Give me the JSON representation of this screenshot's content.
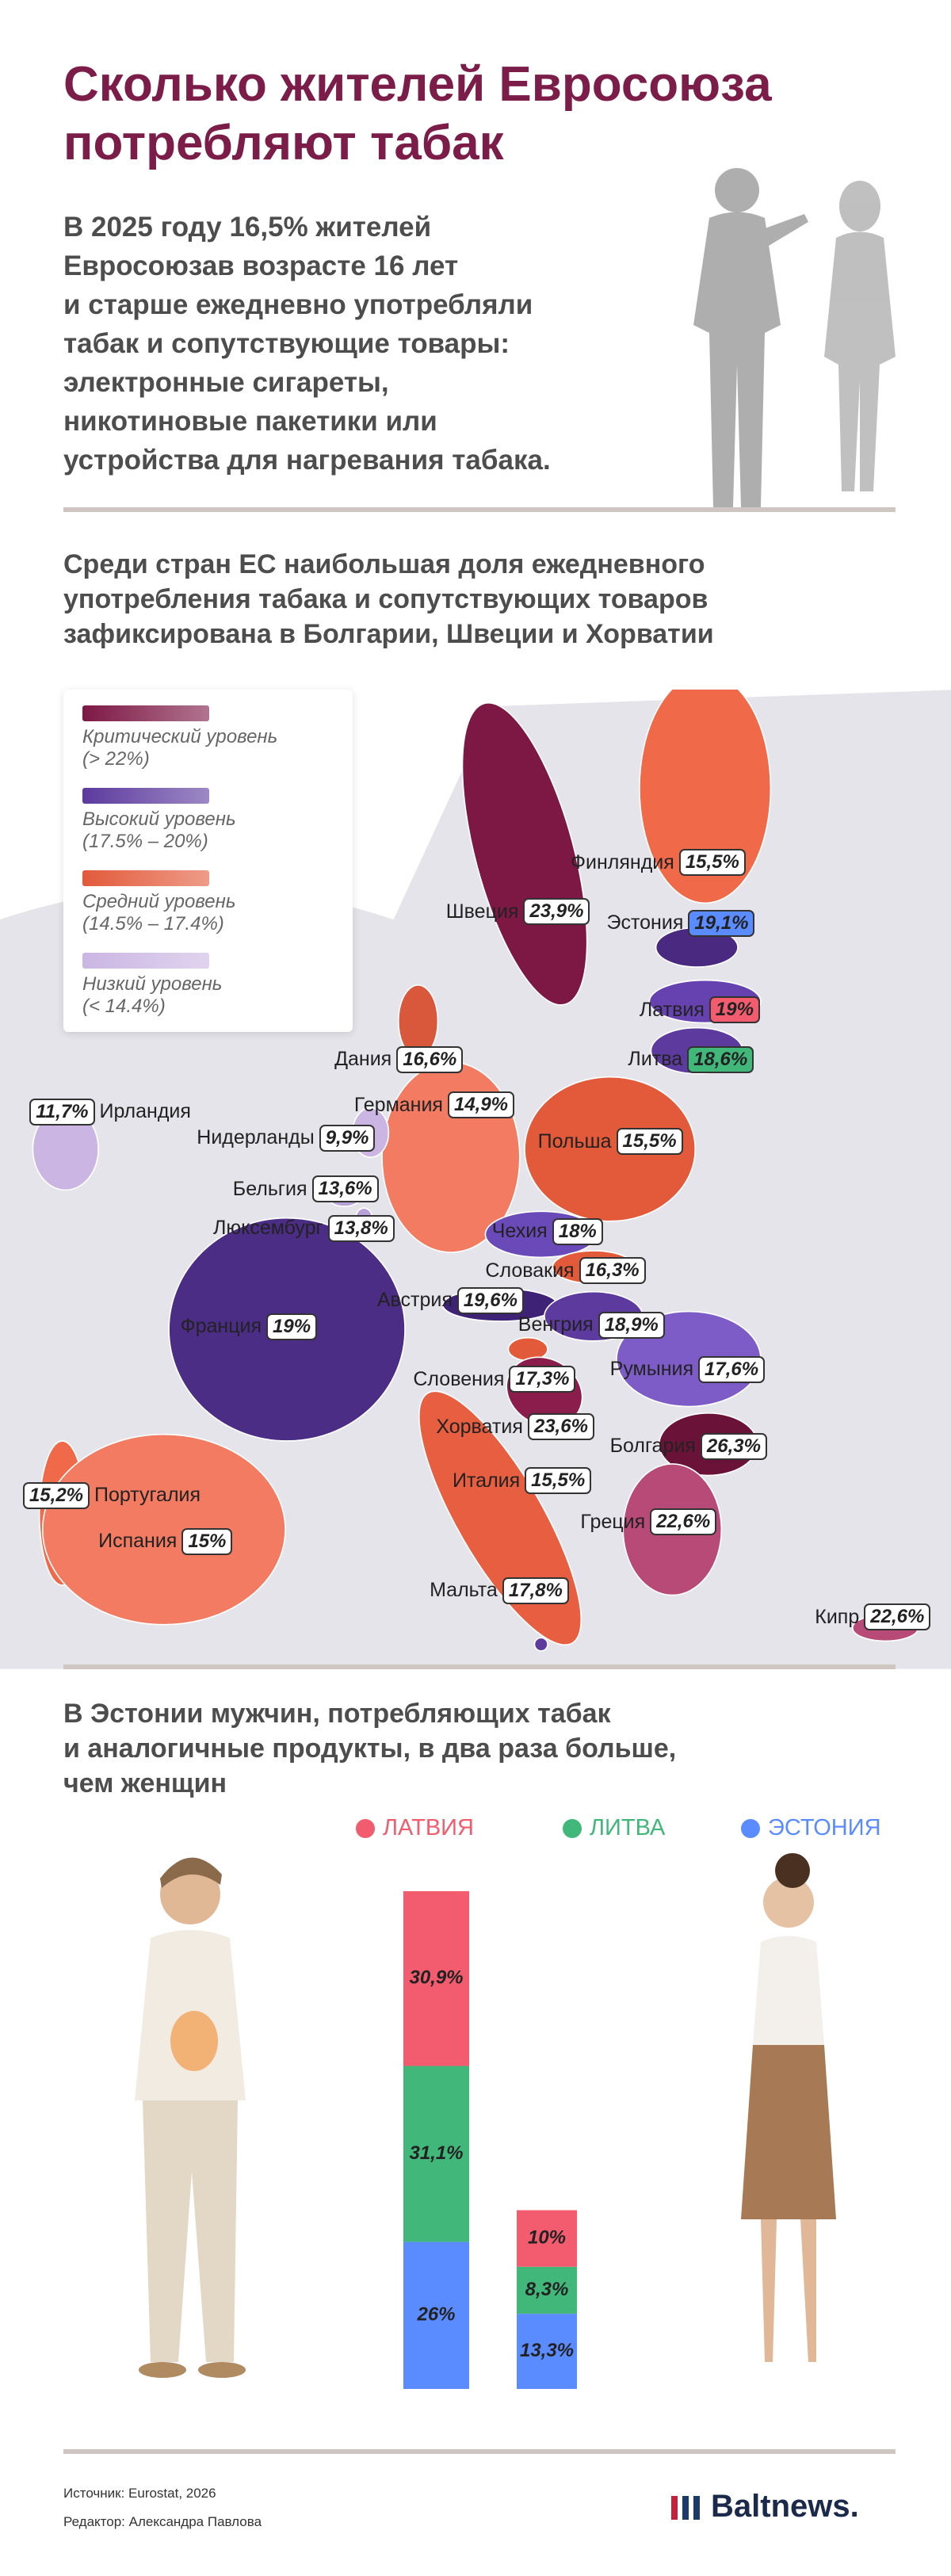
{
  "header": {
    "title": [
      "Сколько жителей Евросоюза",
      "потребляют табак"
    ],
    "intro": [
      "В 2025 году 16,5% жителей",
      "Евросоюзав возрасте 16 лет",
      "и старше ежедневно употребляли",
      "табак и сопутствующие товары:",
      "электронные сигареты,",
      "никотиновые пакетики или",
      "устройства для нагревания табака."
    ]
  },
  "map": {
    "heading": [
      "Среди стран ЕС наибольшая доля ежедневного",
      "употребления табака и сопутствующих товаров",
      "зафиксирована в Болгарии, Швеции и Хорватии"
    ],
    "legend": [
      {
        "name": "Критический уровень",
        "range": "(> 22%)",
        "color": "#7d1845"
      },
      {
        "name": "Высокий уровень",
        "range": "(17.5% – 20%)",
        "color": "#5c3a9e"
      },
      {
        "name": "Средний уровень",
        "range": "(14.5% – 17.4%)",
        "color": "#e25a3a"
      },
      {
        "name": "Низкий уровень",
        "range": "(< 14.4%)",
        "color": "#cbb6e3"
      }
    ],
    "countries": [
      {
        "name": "Финляндия",
        "value": 15.5,
        "value_label": "15,5%",
        "color": "#f06a4a"
      },
      {
        "name": "Швеция",
        "value": 23.9,
        "value_label": "23,9%",
        "color": "#7d1845"
      },
      {
        "name": "Эстония",
        "value": 19.1,
        "value_label": "19,1%",
        "color": "#4a2a80",
        "label_color": "#5b8cff"
      },
      {
        "name": "Латвия",
        "value": 19,
        "value_label": "19%",
        "color": "#6642b0",
        "label_color": "#f25c6e"
      },
      {
        "name": "Литва",
        "value": 18.6,
        "value_label": "18,6%",
        "color": "#5c3a9e",
        "label_color": "#41b87a"
      },
      {
        "name": "Дания",
        "value": 16.6,
        "value_label": "16,6%",
        "color": "#d9583c"
      },
      {
        "name": "Германия",
        "value": 14.9,
        "value_label": "14,9%",
        "color": "#f27b62"
      },
      {
        "name": "Ирландия",
        "value": 11.7,
        "value_label": "11,7%",
        "color": "#cbb6e3"
      },
      {
        "name": "Нидерланды",
        "value": 9.9,
        "value_label": "9,9%",
        "color": "#cbb6e3"
      },
      {
        "name": "Польша",
        "value": 15.5,
        "value_label": "15,5%",
        "color": "#e25a3a"
      },
      {
        "name": "Бельгия",
        "value": 13.6,
        "value_label": "13,6%",
        "color": "#b9a2d8"
      },
      {
        "name": "Люксембург",
        "value": 13.8,
        "value_label": "13,8%",
        "color": "#b9a2d8"
      },
      {
        "name": "Чехия",
        "value": 18,
        "value_label": "18%",
        "color": "#6a4ab8"
      },
      {
        "name": "Словакия",
        "value": 16.3,
        "value_label": "16,3%",
        "color": "#e25a3a"
      },
      {
        "name": "Франция",
        "value": 19,
        "value_label": "19%",
        "color": "#4b2d85"
      },
      {
        "name": "Австрия",
        "value": 19.6,
        "value_label": "19,6%",
        "color": "#3e2275"
      },
      {
        "name": "Венгрия",
        "value": 18.9,
        "value_label": "18,9%",
        "color": "#5c3a9e"
      },
      {
        "name": "Румыния",
        "value": 17.6,
        "value_label": "17,6%",
        "color": "#7d5cc8"
      },
      {
        "name": "Словения",
        "value": 17.3,
        "value_label": "17,3%",
        "color": "#e25a3a"
      },
      {
        "name": "Хорватия",
        "value": 23.6,
        "value_label": "23,6%",
        "color": "#8a1d4c"
      },
      {
        "name": "Болгария",
        "value": 26.3,
        "value_label": "26,3%",
        "color": "#6a1238"
      },
      {
        "name": "Италия",
        "value": 15.5,
        "value_label": "15,5%",
        "color": "#e85e40"
      },
      {
        "name": "Португалия",
        "value": 15.2,
        "value_label": "15,2%",
        "color": "#f06a4a"
      },
      {
        "name": "Испания",
        "value": 15,
        "value_label": "15%",
        "color": "#f27b62"
      },
      {
        "name": "Греция",
        "value": 22.6,
        "value_label": "22,6%",
        "color": "#b84a78"
      },
      {
        "name": "Мальта",
        "value": 17.8,
        "value_label": "17,8%",
        "color": "#5c3a9e"
      },
      {
        "name": "Кипр",
        "value": 22.6,
        "value_label": "22,6%",
        "color": "#b84a78"
      }
    ]
  },
  "chart_data": {
    "type": "stacked_bar",
    "heading": [
      "В Эстонии мужчин, потребляющих табак",
      "и аналогичные продукты, в два раза больше,",
      "чем женщин"
    ],
    "categories": [
      null,
      null
    ],
    "series": [
      {
        "name": "ЭСТОНИЯ",
        "color": "#5b8cff",
        "values": [
          26,
          13.3
        ],
        "value_labels": [
          "26%",
          "13,3%"
        ]
      },
      {
        "name": "ЛИТВА",
        "color": "#41b87a",
        "values": [
          31.1,
          8.3
        ],
        "value_labels": [
          "31,1%",
          "8,3%"
        ]
      },
      {
        "name": "ЛАТВИЯ",
        "color": "#f25c6e",
        "values": [
          30.9,
          10
        ],
        "value_labels": [
          "30,9%",
          "10%"
        ]
      }
    ]
  },
  "footer": {
    "source": "Источник: Eurostat, 2026",
    "editor": "Редактор: Александра Павлова",
    "logo": "Baltnews."
  }
}
